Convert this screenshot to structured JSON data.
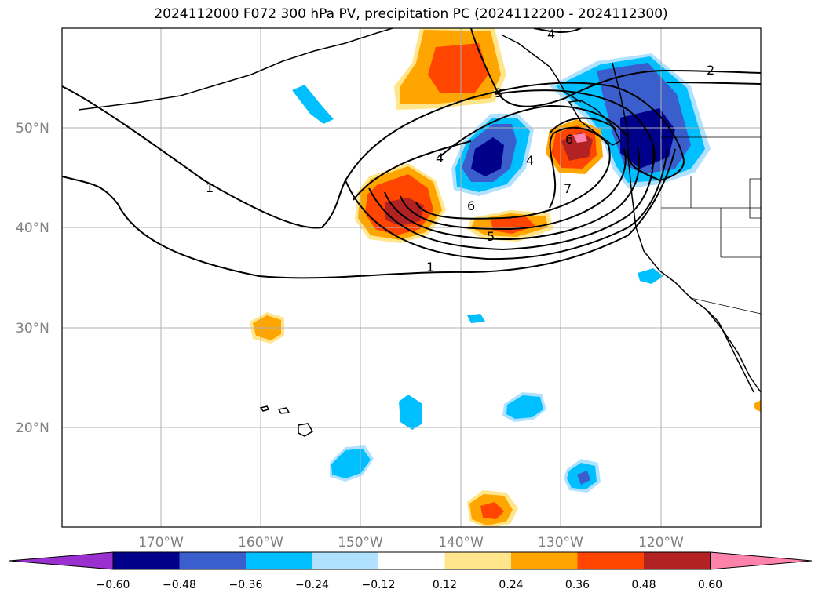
{
  "title": "2024112000 F072 300 hPa PV, precipitation PC (2024112200 - 2024112300)",
  "map": {
    "lat_labels": [
      "50°N",
      "40°N",
      "30°N",
      "20°N"
    ],
    "lon_labels": [
      "170°W",
      "160°W",
      "150°W",
      "140°W",
      "130°W",
      "120°W"
    ],
    "pv_contour_labels": [
      "1",
      "1",
      "2",
      "3",
      "4",
      "4",
      "4",
      "5",
      "6",
      "6",
      "7"
    ]
  },
  "colorbar": {
    "ticks": [
      "−0.60",
      "−0.48",
      "−0.36",
      "−0.24",
      "−0.12",
      "0.12",
      "0.24",
      "0.36",
      "0.48",
      "0.60"
    ],
    "colors": [
      "#9b30d0",
      "#00008b",
      "#3a5fcd",
      "#00bfff",
      "#b0e2ff",
      "#ffffff",
      "#ffe68c",
      "#ffa500",
      "#ff4500",
      "#b22222",
      "#ff82ab"
    ]
  }
}
